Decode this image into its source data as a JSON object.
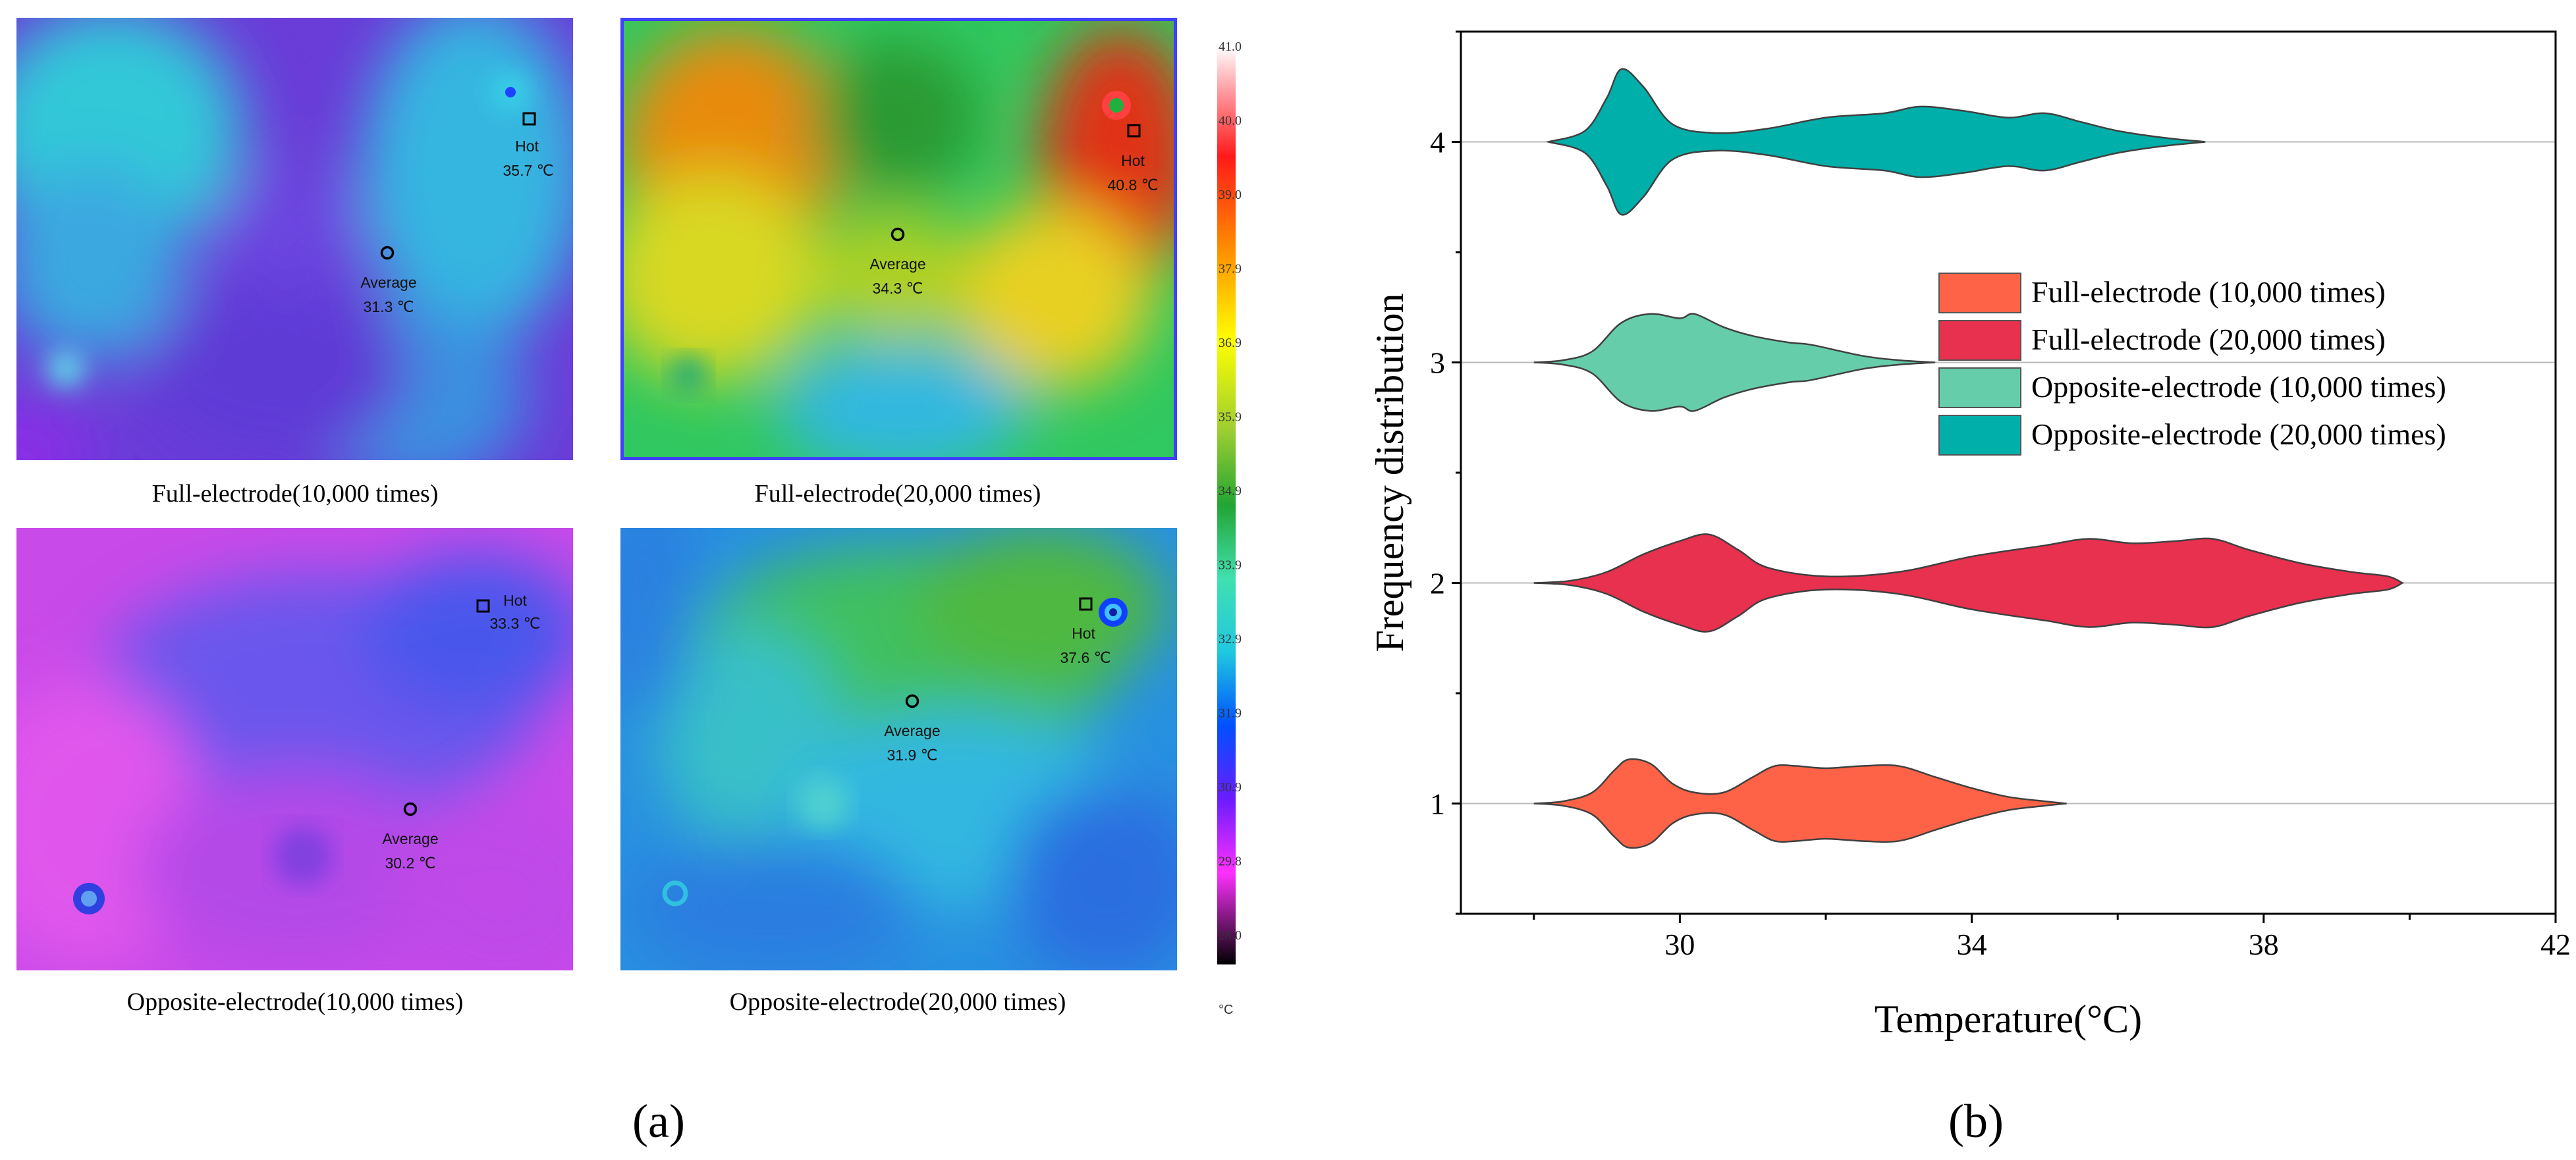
{
  "panel_a": {
    "label": "(a)",
    "colorbar": {
      "ticks": [
        "41.0",
        "40.0",
        "39.0",
        "37.9",
        "36.9",
        "35.9",
        "34.9",
        "33.9",
        "32.9",
        "31.9",
        "30.9",
        "29.8",
        "28.0"
      ],
      "unit": "°C"
    },
    "images": [
      {
        "caption": "Full-electrode(10,000 times)",
        "hot_label": "Hot",
        "hot_value": "35.7 ℃",
        "avg_label": "Average",
        "avg_value": "31.3 ℃"
      },
      {
        "caption": "Full-electrode(20,000 times)",
        "hot_label": "Hot",
        "hot_value": "40.8 ℃",
        "avg_label": "Average",
        "avg_value": "34.3 ℃"
      },
      {
        "caption": "Opposite-electrode(10,000 times)",
        "hot_label": "Hot",
        "hot_value": "33.3 ℃",
        "avg_label": "Average",
        "avg_value": "30.2 ℃"
      },
      {
        "caption": "Opposite-electrode(20,000 times)",
        "hot_label": "Hot",
        "hot_value": "37.6 ℃",
        "avg_label": "Average",
        "avg_value": "31.9 ℃"
      }
    ]
  },
  "panel_b": {
    "label": "(b)"
  },
  "chart_data": {
    "type": "violin",
    "title": "",
    "xlabel": "Temperature(°C)",
    "ylabel": "Frequency distribution",
    "xlim": [
      27,
      42
    ],
    "ylim": [
      0.5,
      4.5
    ],
    "xticks": [
      "30",
      "34",
      "38",
      "42"
    ],
    "yticks": [
      "1",
      "2",
      "3",
      "4"
    ],
    "legend_position": "center-right",
    "series": [
      {
        "name": "Full-electrode (10,000 times)",
        "y": 1,
        "color": "#FF6347",
        "range": [
          28,
          35.3
        ],
        "profile": [
          [
            28,
            0
          ],
          [
            28.4,
            0.01
          ],
          [
            28.8,
            0.05
          ],
          [
            29.1,
            0.15
          ],
          [
            29.3,
            0.2
          ],
          [
            29.6,
            0.18
          ],
          [
            29.9,
            0.09
          ],
          [
            30.2,
            0.05
          ],
          [
            30.6,
            0.05
          ],
          [
            31.0,
            0.12
          ],
          [
            31.3,
            0.17
          ],
          [
            31.6,
            0.17
          ],
          [
            32.0,
            0.16
          ],
          [
            32.5,
            0.17
          ],
          [
            33.0,
            0.17
          ],
          [
            33.5,
            0.12
          ],
          [
            34.0,
            0.07
          ],
          [
            34.5,
            0.03
          ],
          [
            35.0,
            0.01
          ],
          [
            35.3,
            0.0
          ]
        ]
      },
      {
        "name": "Full-electrode (20,000 times)",
        "y": 2,
        "color": "#E8304F",
        "range": [
          28,
          39.9
        ],
        "profile": [
          [
            28,
            0
          ],
          [
            28.5,
            0.01
          ],
          [
            29.0,
            0.05
          ],
          [
            29.5,
            0.13
          ],
          [
            30.0,
            0.19
          ],
          [
            30.4,
            0.22
          ],
          [
            30.8,
            0.15
          ],
          [
            31.2,
            0.07
          ],
          [
            32.0,
            0.03
          ],
          [
            33.0,
            0.05
          ],
          [
            34.0,
            0.12
          ],
          [
            35.0,
            0.17
          ],
          [
            35.6,
            0.2
          ],
          [
            36.2,
            0.18
          ],
          [
            36.8,
            0.19
          ],
          [
            37.3,
            0.2
          ],
          [
            37.8,
            0.15
          ],
          [
            38.5,
            0.09
          ],
          [
            39.2,
            0.05
          ],
          [
            39.7,
            0.03
          ],
          [
            39.9,
            0.0
          ]
        ]
      },
      {
        "name": "Opposite-electrode (10,000 times)",
        "y": 3,
        "color": "#66CDAA",
        "range": [
          28,
          33.5
        ],
        "profile": [
          [
            28,
            0
          ],
          [
            28.4,
            0.01
          ],
          [
            28.8,
            0.05
          ],
          [
            29.2,
            0.18
          ],
          [
            29.6,
            0.22
          ],
          [
            30.0,
            0.2
          ],
          [
            30.2,
            0.22
          ],
          [
            30.6,
            0.16
          ],
          [
            31.0,
            0.12
          ],
          [
            31.5,
            0.09
          ],
          [
            31.8,
            0.08
          ],
          [
            32.5,
            0.03
          ],
          [
            33.0,
            0.01
          ],
          [
            33.5,
            0.0
          ]
        ]
      },
      {
        "name": "Opposite-electrode (20,000 times)",
        "y": 4,
        "color": "#00AFAA",
        "range": [
          28.2,
          37.2
        ],
        "profile": [
          [
            28.2,
            0
          ],
          [
            28.7,
            0.05
          ],
          [
            29.0,
            0.2
          ],
          [
            29.2,
            0.33
          ],
          [
            29.5,
            0.25
          ],
          [
            29.9,
            0.08
          ],
          [
            30.5,
            0.04
          ],
          [
            31.2,
            0.06
          ],
          [
            32.0,
            0.11
          ],
          [
            32.8,
            0.13
          ],
          [
            33.3,
            0.16
          ],
          [
            33.9,
            0.14
          ],
          [
            34.5,
            0.11
          ],
          [
            35.0,
            0.13
          ],
          [
            35.5,
            0.09
          ],
          [
            36.0,
            0.05
          ],
          [
            36.6,
            0.02
          ],
          [
            37.2,
            0.0
          ]
        ]
      }
    ]
  }
}
